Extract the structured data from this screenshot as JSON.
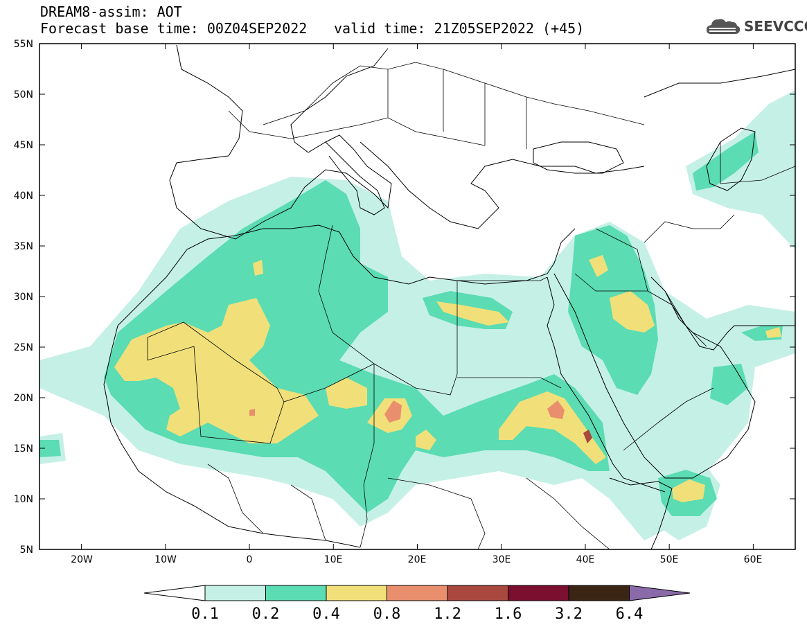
{
  "header": {
    "line1": "DREAM8-assim: AOT",
    "line2": "Forecast base time: 00Z04SEP2022",
    "line2b": "valid time: 21Z05SEP2022 (+45)"
  },
  "logo": {
    "text": "SEEVCCC",
    "icon": "cloud-icon"
  },
  "map": {
    "lon_ticks": [
      "20W",
      "10W",
      "0",
      "10E",
      "20E",
      "30E",
      "40E",
      "50E",
      "60E"
    ],
    "lat_ticks": [
      "55N",
      "50N",
      "45N",
      "40N",
      "35N",
      "30N",
      "25N",
      "20N",
      "15N",
      "10N",
      "5N"
    ],
    "lon_range": [
      -25,
      65
    ],
    "lat_range": [
      5,
      55
    ]
  },
  "colorbar": {
    "labels": [
      "0.1",
      "0.2",
      "0.4",
      "0.8",
      "1.2",
      "1.6",
      "3.2",
      "6.4"
    ],
    "colors": [
      "#ffffff",
      "#c5f0e6",
      "#5bdcb2",
      "#f1e07a",
      "#e98f6e",
      "#a9483e",
      "#7b0f30",
      "#3a2515",
      "#8a6aa8"
    ]
  },
  "levels": {
    "c02": "#5bdcb2",
    "c01": "#c5f0e6",
    "c04": "#f1e07a",
    "c08": "#e98f6e",
    "c12": "#a9483e"
  }
}
